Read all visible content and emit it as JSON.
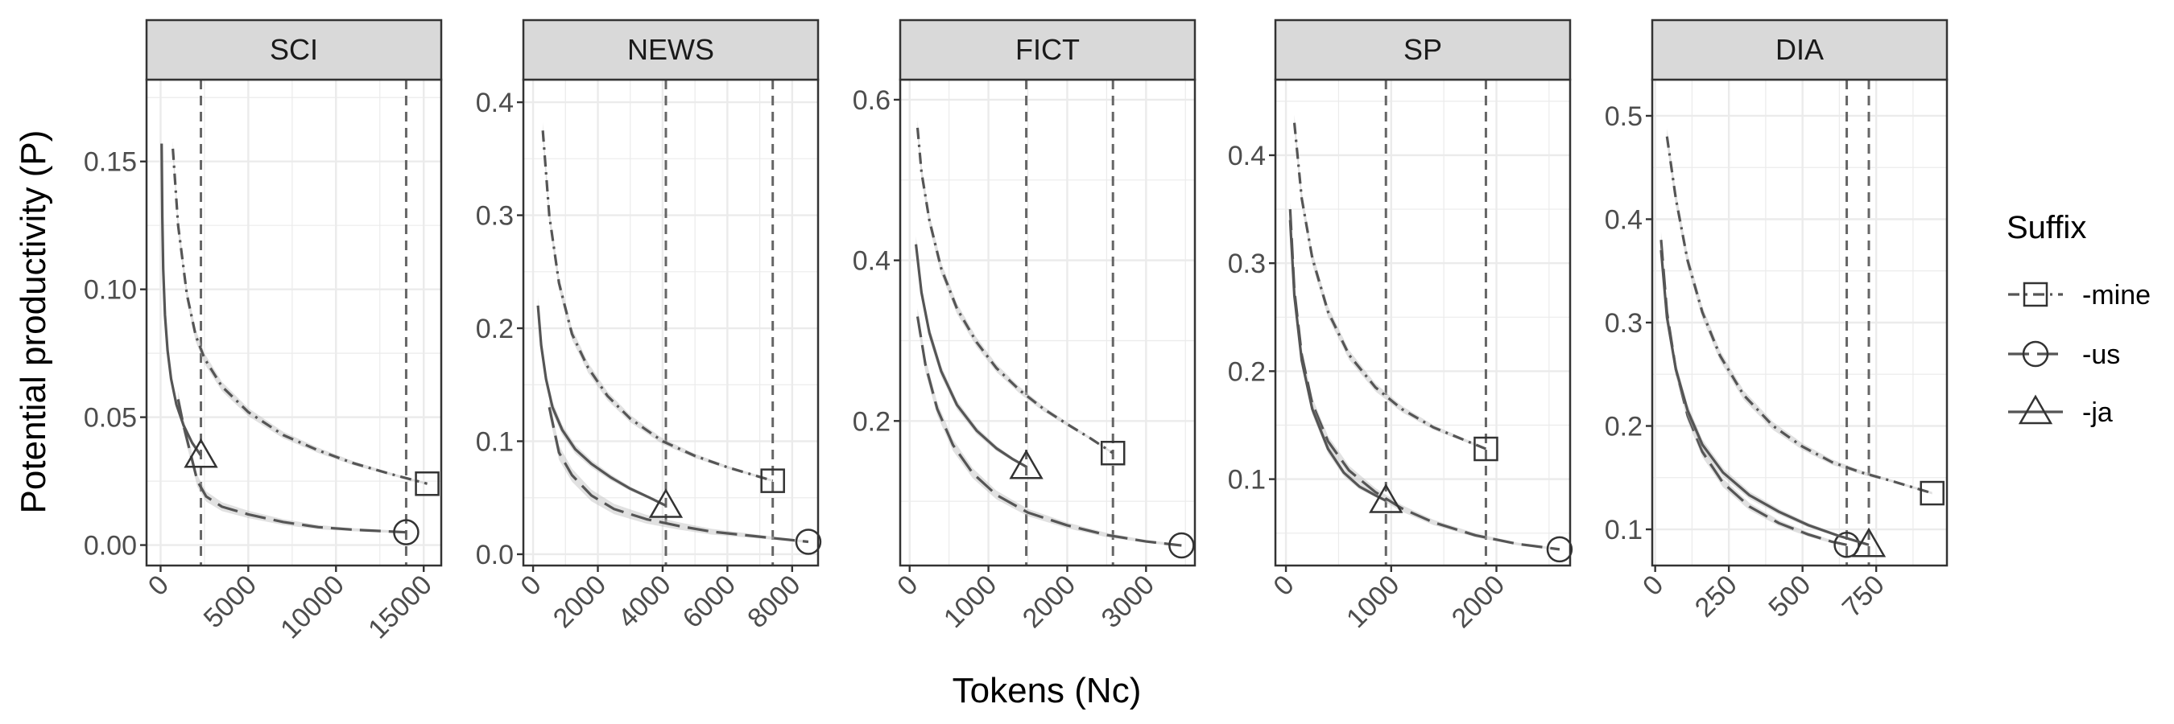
{
  "chart_data": {
    "type": "line",
    "xlabel": "Tokens (Nc)",
    "ylabel": "Potential productivity (P)",
    "legend": {
      "title": "Suffix",
      "placement": "right",
      "entries": [
        {
          "name": "-mine",
          "marker": "square",
          "dash": "dashdot"
        },
        {
          "name": "-us",
          "marker": "circle",
          "dash": "longdash"
        },
        {
          "name": "-ja",
          "marker": "triangle",
          "dash": "solid"
        }
      ]
    },
    "grid": true,
    "colors": {
      "line": "#555555",
      "grid": "#ebebeb",
      "strip": "#d9d9d9",
      "border": "#333333",
      "band": "#bdbdbd",
      "vline": "#666666"
    },
    "panels": [
      {
        "strip": "SCI",
        "xlim": [
          -800,
          16000
        ],
        "ylim": [
          -0.008,
          0.182
        ],
        "xticks": [
          0,
          5000,
          10000,
          15000
        ],
        "xtick_labels": [
          "0",
          "5000",
          "10000",
          "15000"
        ],
        "yticks": [
          0.0,
          0.05,
          0.1,
          0.15
        ],
        "ytick_labels": [
          "0.00",
          "0.05",
          "0.10",
          "0.15"
        ],
        "vlines": [
          2300,
          14000
        ],
        "series": [
          {
            "name": "-mine",
            "x": [
              700,
              1000,
              1500,
              2000,
              2500,
              3500,
              5000,
              7000,
              9000,
              11000,
              13000,
              15200
            ],
            "y": [
              0.155,
              0.125,
              0.098,
              0.082,
              0.073,
              0.062,
              0.052,
              0.043,
              0.037,
              0.032,
              0.028,
              0.024
            ]
          },
          {
            "name": "-us",
            "x": [
              1000,
              1300,
              1700,
              2100,
              2600,
              3500,
              5000,
              7000,
              9000,
              11000,
              14000
            ],
            "y": [
              0.057,
              0.047,
              0.036,
              0.025,
              0.019,
              0.015,
              0.012,
              0.009,
              0.007,
              0.006,
              0.005
            ]
          },
          {
            "name": "-ja",
            "x": [
              60,
              100,
              150,
              250,
              400,
              600,
              900,
              1300,
              1800,
              2300
            ],
            "y": [
              0.157,
              0.128,
              0.108,
              0.09,
              0.076,
              0.065,
              0.055,
              0.047,
              0.04,
              0.035
            ]
          }
        ]
      },
      {
        "strip": "NEWS",
        "xlim": [
          -300,
          8800
        ],
        "ylim": [
          -0.01,
          0.42
        ],
        "xticks": [
          0,
          2000,
          4000,
          6000,
          8000
        ],
        "xtick_labels": [
          "0",
          "2000",
          "4000",
          "6000",
          "8000"
        ],
        "yticks": [
          0.0,
          0.1,
          0.2,
          0.3,
          0.4
        ],
        "ytick_labels": [
          "0.0",
          "0.1",
          "0.2",
          "0.3",
          "0.4"
        ],
        "vlines": [
          4100,
          7400
        ],
        "series": [
          {
            "name": "-mine",
            "x": [
              300,
              500,
              800,
              1200,
              1700,
              2300,
              3000,
              4000,
              5000,
              6000,
              7400
            ],
            "y": [
              0.375,
              0.3,
              0.24,
              0.195,
              0.165,
              0.14,
              0.12,
              0.1,
              0.087,
              0.077,
              0.065
            ]
          },
          {
            "name": "-us",
            "x": [
              500,
              800,
              1200,
              1800,
              2500,
              3500,
              4500,
              5500,
              6500,
              7500,
              8500
            ],
            "y": [
              0.13,
              0.09,
              0.07,
              0.052,
              0.04,
              0.031,
              0.025,
              0.02,
              0.017,
              0.014,
              0.011
            ]
          },
          {
            "name": "-ja",
            "x": [
              150,
              250,
              400,
              600,
              900,
              1300,
              1800,
              2400,
              3000,
              3600,
              4100
            ],
            "y": [
              0.22,
              0.185,
              0.155,
              0.13,
              0.11,
              0.093,
              0.08,
              0.068,
              0.058,
              0.05,
              0.043
            ]
          }
        ]
      },
      {
        "strip": "FICT",
        "xlim": [
          -120,
          3620
        ],
        "ylim": [
          0.02,
          0.625
        ],
        "xticks": [
          0,
          1000,
          2000,
          3000
        ],
        "xtick_labels": [
          "0",
          "1000",
          "2000",
          "3000"
        ],
        "yticks": [
          0.2,
          0.4,
          0.6
        ],
        "ytick_labels": [
          "0.2",
          "0.4",
          "0.6"
        ],
        "vlines": [
          1480,
          2580
        ],
        "series": [
          {
            "name": "-mine",
            "x": [
              100,
              150,
              250,
              400,
              600,
              850,
              1100,
              1400,
              1700,
              2000,
              2300,
              2580
            ],
            "y": [
              0.565,
              0.51,
              0.45,
              0.39,
              0.34,
              0.298,
              0.266,
              0.238,
              0.215,
              0.196,
              0.178,
              0.16
            ]
          },
          {
            "name": "-us",
            "x": [
              100,
              200,
              350,
              550,
              800,
              1100,
              1500,
              2000,
              2500,
              3000,
              3450
            ],
            "y": [
              0.33,
              0.27,
              0.215,
              0.17,
              0.135,
              0.108,
              0.086,
              0.07,
              0.058,
              0.05,
              0.045
            ]
          },
          {
            "name": "-ja",
            "x": [
              80,
              150,
              250,
              400,
              600,
              850,
              1100,
              1300,
              1480
            ],
            "y": [
              0.42,
              0.36,
              0.31,
              0.262,
              0.22,
              0.188,
              0.166,
              0.153,
              0.143
            ]
          }
        ]
      },
      {
        "strip": "SP",
        "xlim": [
          -100,
          2700
        ],
        "ylim": [
          0.02,
          0.47
        ],
        "xticks": [
          0,
          1000,
          2000
        ],
        "xtick_labels": [
          "0",
          "1000",
          "2000"
        ],
        "yticks": [
          0.1,
          0.2,
          0.3,
          0.4
        ],
        "ytick_labels": [
          "0.1",
          "0.2",
          "0.3",
          "0.4"
        ],
        "vlines": [
          950,
          1900
        ],
        "series": [
          {
            "name": "-mine",
            "x": [
              80,
              150,
              250,
              400,
              600,
              850,
              1100,
              1400,
              1700,
              1900
            ],
            "y": [
              0.43,
              0.36,
              0.305,
              0.255,
              0.215,
              0.185,
              0.165,
              0.148,
              0.136,
              0.128
            ]
          },
          {
            "name": "-us",
            "x": [
              40,
              80,
              150,
              250,
              400,
              600,
              850,
              1100,
              1400,
              1800,
              2200,
              2600
            ],
            "y": [
              0.35,
              0.275,
              0.215,
              0.17,
              0.135,
              0.108,
              0.088,
              0.073,
              0.06,
              0.048,
              0.04,
              0.035
            ]
          },
          {
            "name": "-ja",
            "x": [
              40,
              80,
              150,
              250,
              400,
              550,
              700,
              850,
              950
            ],
            "y": [
              0.34,
              0.27,
              0.21,
              0.165,
              0.128,
              0.106,
              0.093,
              0.085,
              0.08
            ]
          }
        ]
      },
      {
        "strip": "DIA",
        "xlim": [
          -10,
          990
        ],
        "ylim": [
          0.065,
          0.535
        ],
        "xticks": [
          0,
          250,
          500,
          750
        ],
        "xtick_labels": [
          "0",
          "250",
          "500",
          "750"
        ],
        "yticks": [
          0.1,
          0.2,
          0.3,
          0.4,
          0.5
        ],
        "ytick_labels": [
          "0.1",
          "0.2",
          "0.3",
          "0.4",
          "0.5"
        ],
        "vlines": [
          650,
          725
        ],
        "series": [
          {
            "name": "-mine",
            "x": [
              40,
              70,
              110,
              160,
              220,
              300,
              400,
              500,
              600,
              700,
              800,
              940
            ],
            "y": [
              0.48,
              0.42,
              0.36,
              0.31,
              0.268,
              0.23,
              0.2,
              0.18,
              0.165,
              0.155,
              0.147,
              0.135
            ]
          },
          {
            "name": "-us",
            "x": [
              20,
              40,
              70,
              110,
              160,
              230,
              320,
              420,
              520,
              600,
              650
            ],
            "y": [
              0.38,
              0.31,
              0.255,
              0.21,
              0.175,
              0.145,
              0.122,
              0.106,
              0.095,
              0.088,
              0.085
            ]
          },
          {
            "name": "-ja",
            "x": [
              20,
              40,
              70,
              110,
              160,
              230,
              320,
              420,
              520,
              620,
              725
            ],
            "y": [
              0.37,
              0.305,
              0.255,
              0.215,
              0.182,
              0.155,
              0.133,
              0.117,
              0.104,
              0.094,
              0.085
            ]
          }
        ]
      }
    ]
  }
}
